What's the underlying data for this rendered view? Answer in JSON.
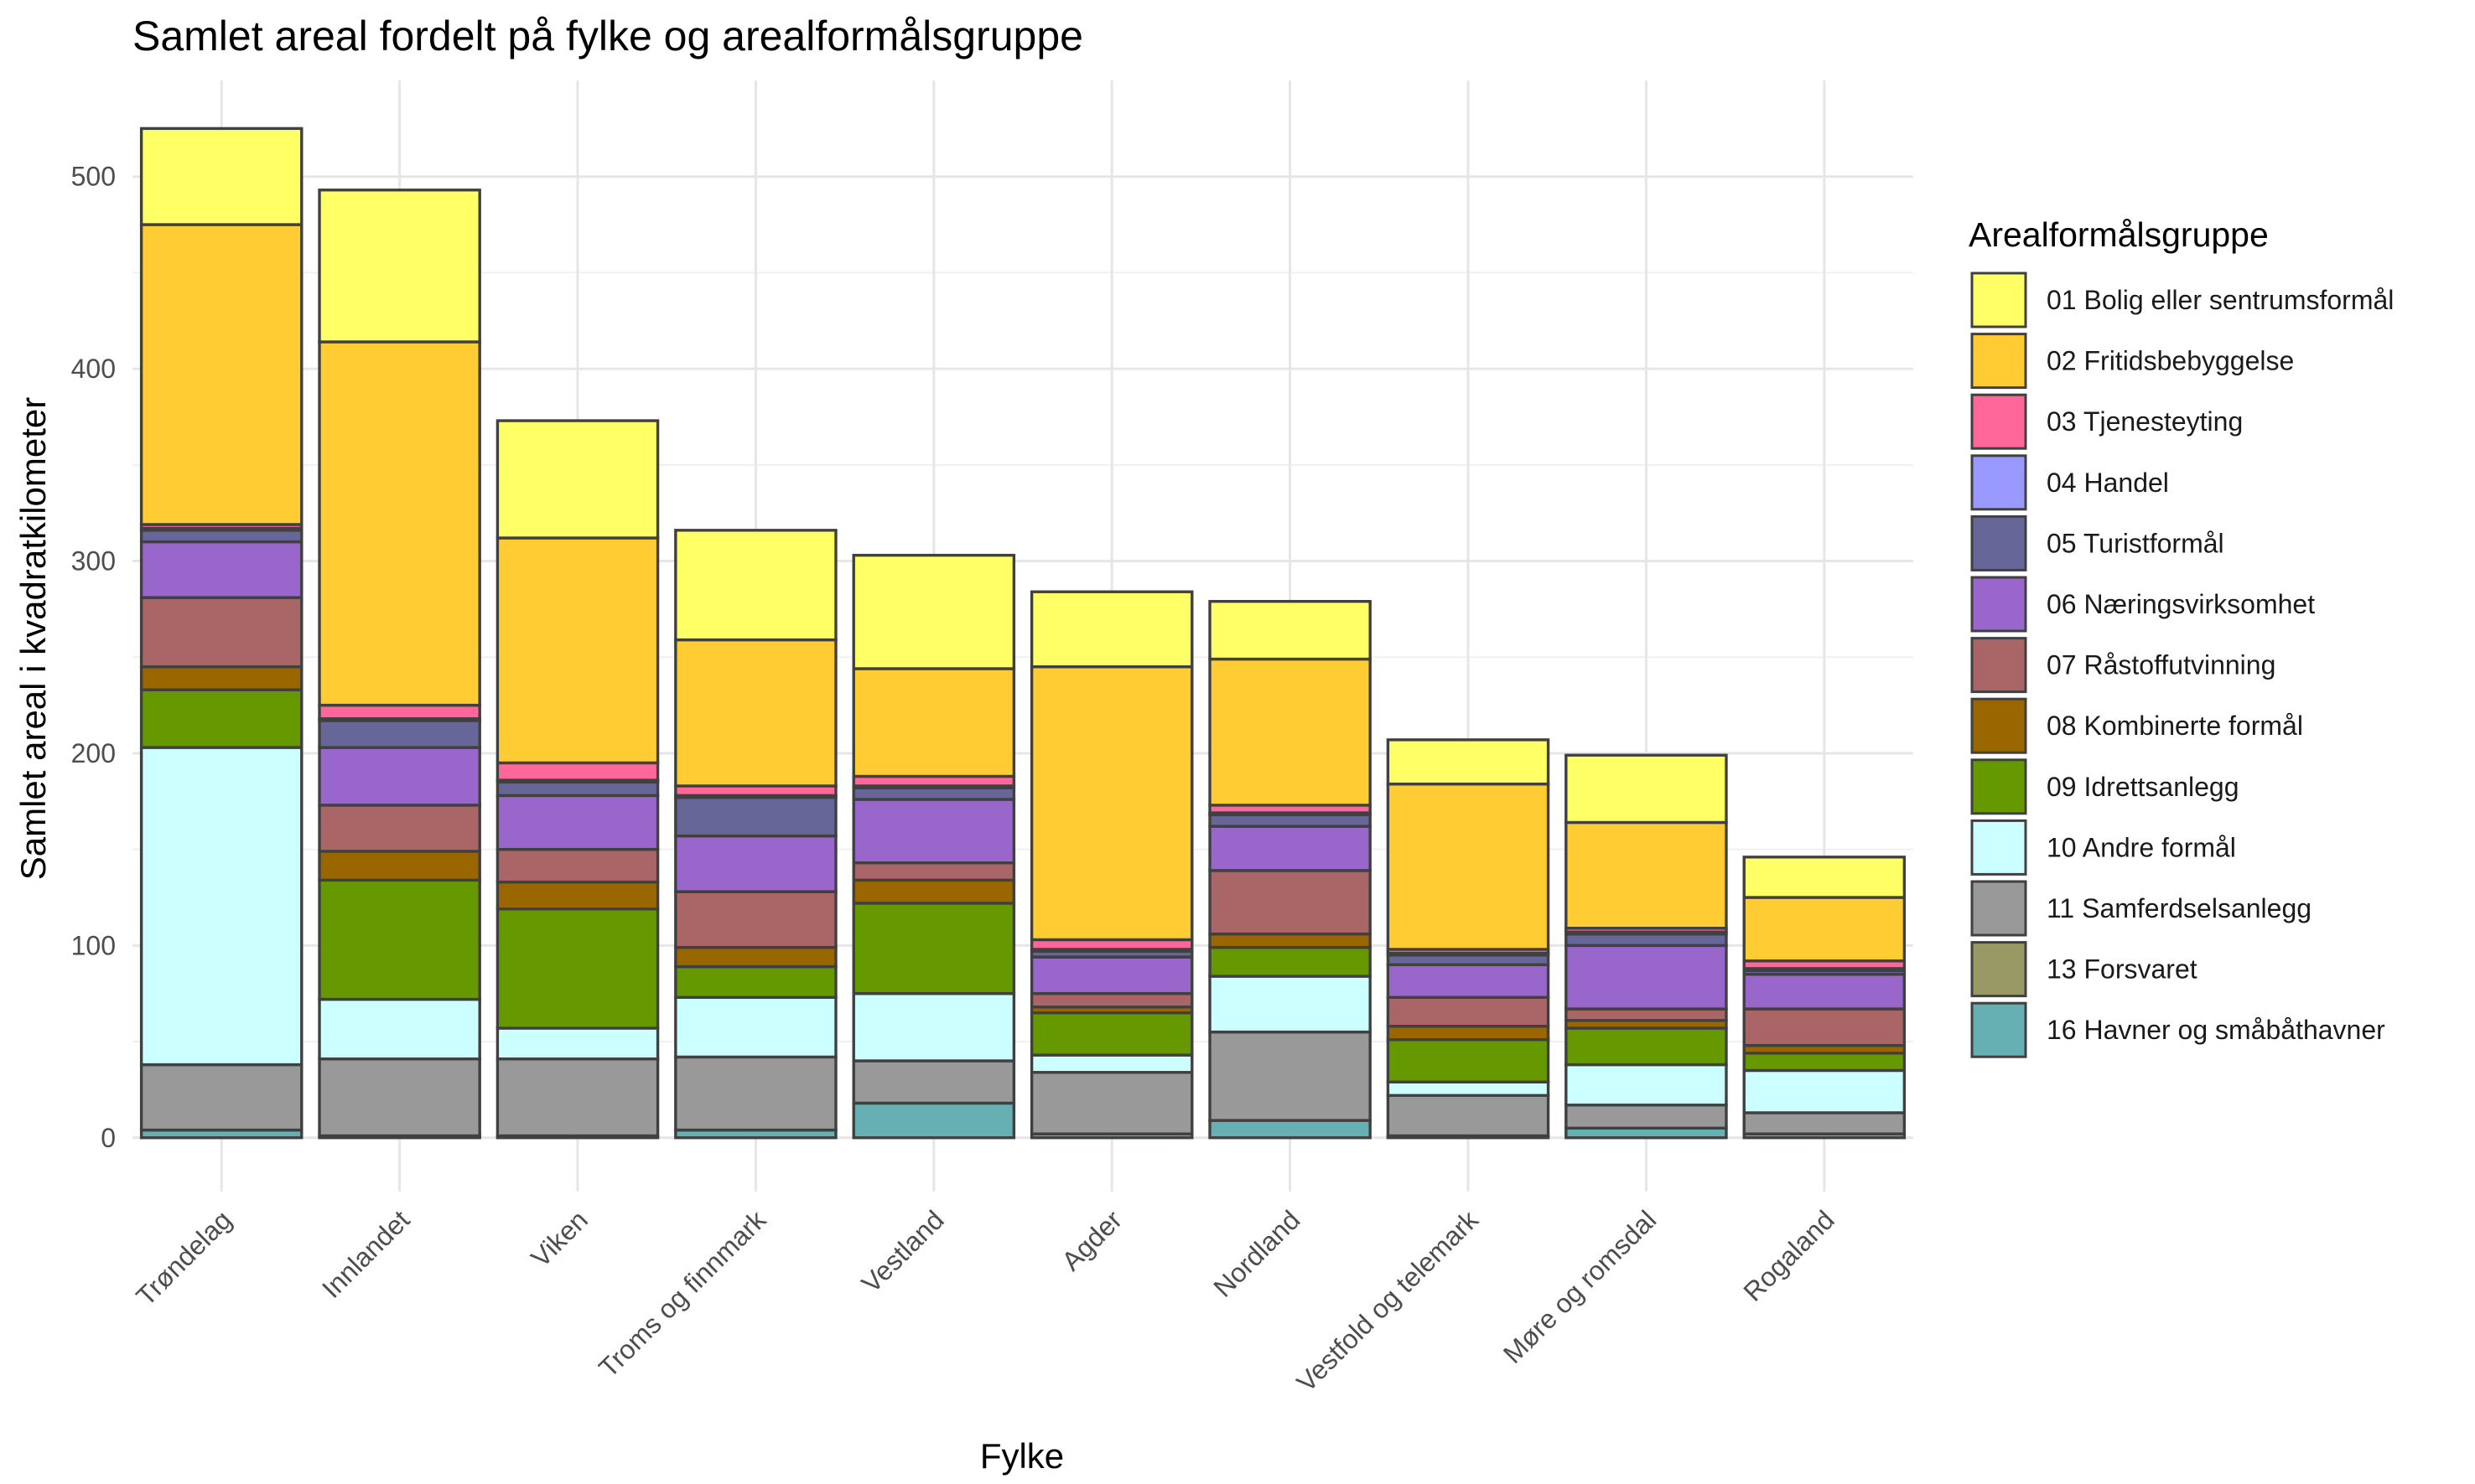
{
  "chart_data": {
    "type": "bar",
    "stacked": true,
    "title": "Samlet areal fordelt på fylke og arealformålsgruppe",
    "xlabel": "Fylke",
    "ylabel": "Samlet areal i kvadratkilometer",
    "ylim": [
      -28,
      550
    ],
    "yticks": [
      0,
      100,
      200,
      300,
      400,
      500
    ],
    "grid": true,
    "legend_position": "right",
    "legend_title": "Arealformålsgruppe",
    "categories": [
      "Trøndelag",
      "Innlandet",
      "Viken",
      "Troms og finnmark",
      "Vestland",
      "Agder",
      "Nordland",
      "Vestfold og telemark",
      "Møre og romsdal",
      "Rogaland"
    ],
    "series": [
      {
        "name": "01 Bolig eller sentrumsformål",
        "color": "#FFFF66",
        "values": [
          50,
          79,
          61,
          57,
          59,
          39,
          30,
          23,
          35,
          21
        ]
      },
      {
        "name": "02 Fritidsbebyggelse",
        "color": "#FFCC33",
        "values": [
          156,
          189,
          117,
          76,
          56,
          142,
          76,
          86,
          55,
          33
        ]
      },
      {
        "name": "03 Tjenesteyting",
        "color": "#FF6699",
        "values": [
          2,
          7,
          9,
          5,
          5,
          5,
          4,
          2,
          2,
          4
        ]
      },
      {
        "name": "04 Handel",
        "color": "#9999FF",
        "values": [
          1,
          1,
          1,
          1,
          1,
          1,
          1,
          1,
          1,
          1
        ]
      },
      {
        "name": "05 Turistformål",
        "color": "#666699",
        "values": [
          6,
          14,
          7,
          20,
          6,
          3,
          6,
          5,
          6,
          2
        ]
      },
      {
        "name": "06 Næringsvirksomhet",
        "color": "#9966CC",
        "values": [
          29,
          30,
          28,
          29,
          33,
          19,
          23,
          17,
          33,
          18
        ]
      },
      {
        "name": "07 Råstoffutvinning",
        "color": "#AA6666",
        "values": [
          36,
          24,
          17,
          29,
          9,
          7,
          33,
          15,
          6,
          19
        ]
      },
      {
        "name": "08 Kombinerte formål",
        "color": "#996600",
        "values": [
          12,
          15,
          14,
          10,
          12,
          3,
          7,
          7,
          4,
          4
        ]
      },
      {
        "name": "09 Idrettsanlegg",
        "color": "#669900",
        "values": [
          30,
          62,
          62,
          16,
          47,
          22,
          15,
          22,
          19,
          9
        ]
      },
      {
        "name": "10 Andre formål",
        "color": "#CCFFFF",
        "values": [
          165,
          31,
          16,
          31,
          35,
          9,
          29,
          7,
          21,
          22
        ]
      },
      {
        "name": "11 Samferdselsanlegg",
        "color": "#999999",
        "values": [
          34,
          40,
          40,
          38,
          22,
          32,
          46,
          21,
          12,
          11
        ]
      },
      {
        "name": "13 Forsvaret",
        "color": "#999966",
        "values": [
          0,
          0,
          0,
          0,
          0,
          0,
          0,
          0,
          0,
          0
        ]
      },
      {
        "name": "16 Havner og småbåthavner",
        "color": "#66AFB2",
        "values": [
          4,
          1,
          1,
          4,
          18,
          2,
          9,
          1,
          5,
          2
        ]
      }
    ]
  }
}
